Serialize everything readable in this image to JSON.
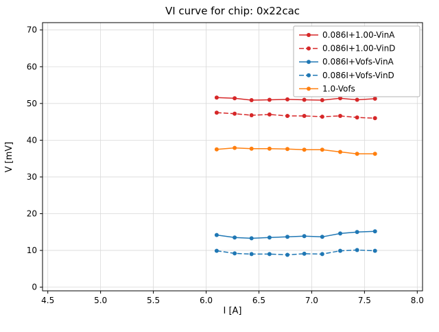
{
  "chart_data": {
    "type": "line",
    "title": "VI curve for chip: 0x22cac",
    "xlabel": "I [A]",
    "ylabel": "V [mV]",
    "xlim": [
      4.45,
      8.05
    ],
    "ylim": [
      -1,
      72
    ],
    "xticks": [
      4.5,
      5.0,
      5.5,
      6.0,
      6.5,
      7.0,
      7.5,
      8.0
    ],
    "yticks": [
      0,
      10,
      20,
      30,
      40,
      50,
      60,
      70
    ],
    "grid": true,
    "legend_position": "upper right",
    "x": [
      6.1,
      6.27,
      6.43,
      6.6,
      6.77,
      6.93,
      7.1,
      7.27,
      7.43,
      7.6
    ],
    "series": [
      {
        "name": "0.086I+1.00-VinA",
        "color": "#d62728",
        "dash": "solid",
        "marker": "circle",
        "values": [
          51.6,
          51.4,
          50.9,
          51.0,
          51.1,
          51.0,
          50.9,
          51.4,
          51.0,
          51.3
        ]
      },
      {
        "name": "0.086I+1.00-VinD",
        "color": "#d62728",
        "dash": "dashed",
        "marker": "circle",
        "values": [
          47.5,
          47.2,
          46.8,
          47.0,
          46.6,
          46.6,
          46.4,
          46.6,
          46.2,
          46.0
        ]
      },
      {
        "name": "0.086I+Vofs-VinA",
        "color": "#1f77b4",
        "dash": "solid",
        "marker": "circle",
        "values": [
          14.2,
          13.5,
          13.3,
          13.5,
          13.7,
          13.9,
          13.7,
          14.6,
          15.0,
          15.2
        ]
      },
      {
        "name": "0.086I+Vofs-VinD",
        "color": "#1f77b4",
        "dash": "dashed",
        "marker": "circle",
        "values": [
          9.9,
          9.2,
          9.0,
          9.0,
          8.8,
          9.1,
          9.0,
          9.9,
          10.1,
          9.9
        ]
      },
      {
        "name": "1.0-Vofs",
        "color": "#ff7f0e",
        "dash": "solid",
        "marker": "circle",
        "values": [
          37.5,
          37.9,
          37.7,
          37.7,
          37.6,
          37.4,
          37.4,
          36.8,
          36.3,
          36.3
        ]
      }
    ],
    "colors": {
      "grid": "#d9d9d9",
      "axes_frame": "#000000",
      "legend_border": "#b0b0b0",
      "background": "#ffffff"
    }
  }
}
